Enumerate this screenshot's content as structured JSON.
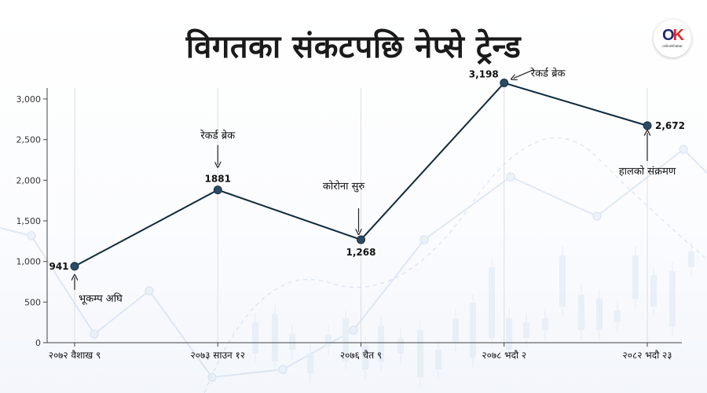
{
  "title": "विगतका संकटपछि नेप्से ट्रेन्ड",
  "logo": {
    "mark_o": "O",
    "mark_k": "K",
    "subtitle": "onlinekhabar"
  },
  "colors": {
    "line": "#0f2a3d",
    "point": "#2c4a63",
    "grid": "#dedede",
    "axis": "#444444",
    "text": "#111111",
    "decor": "#c9d8ec"
  },
  "chart_data": {
    "type": "line",
    "title": "विगतका संकटपछि नेप्से ट्रेन्ड",
    "xlabel": "",
    "ylabel": "",
    "categories": [
      "२०७२ वैशाख ९",
      "२०७३ साउन १२",
      "२०७६ चैत ९",
      "२०७८ भदौ २",
      "२०८२ भदौ २३"
    ],
    "series": [
      {
        "values": [
          941,
          1881,
          1268,
          3198,
          2672
        ],
        "value_labels": [
          "941",
          "1881",
          "1,268",
          "3,198",
          "2,672"
        ]
      }
    ],
    "ylim": [
      0,
      3300
    ],
    "yticks": [
      0,
      500,
      1000,
      1500,
      2000,
      2500,
      3000
    ],
    "ytick_labels": [
      "0",
      "500",
      "1,000",
      "1,500",
      "2,000",
      "2,500",
      "3,000"
    ],
    "grid": "vertical",
    "annotations": [
      {
        "point": 0,
        "text": "भूकम्प अघि"
      },
      {
        "point": 1,
        "text": "रेकर्ड ब्रेक"
      },
      {
        "point": 2,
        "text": "कोरोना सुरु"
      },
      {
        "point": 3,
        "text": "रेकर्ड ब्रेक"
      },
      {
        "point": 4,
        "text": "हालको संक्रमण"
      }
    ]
  }
}
